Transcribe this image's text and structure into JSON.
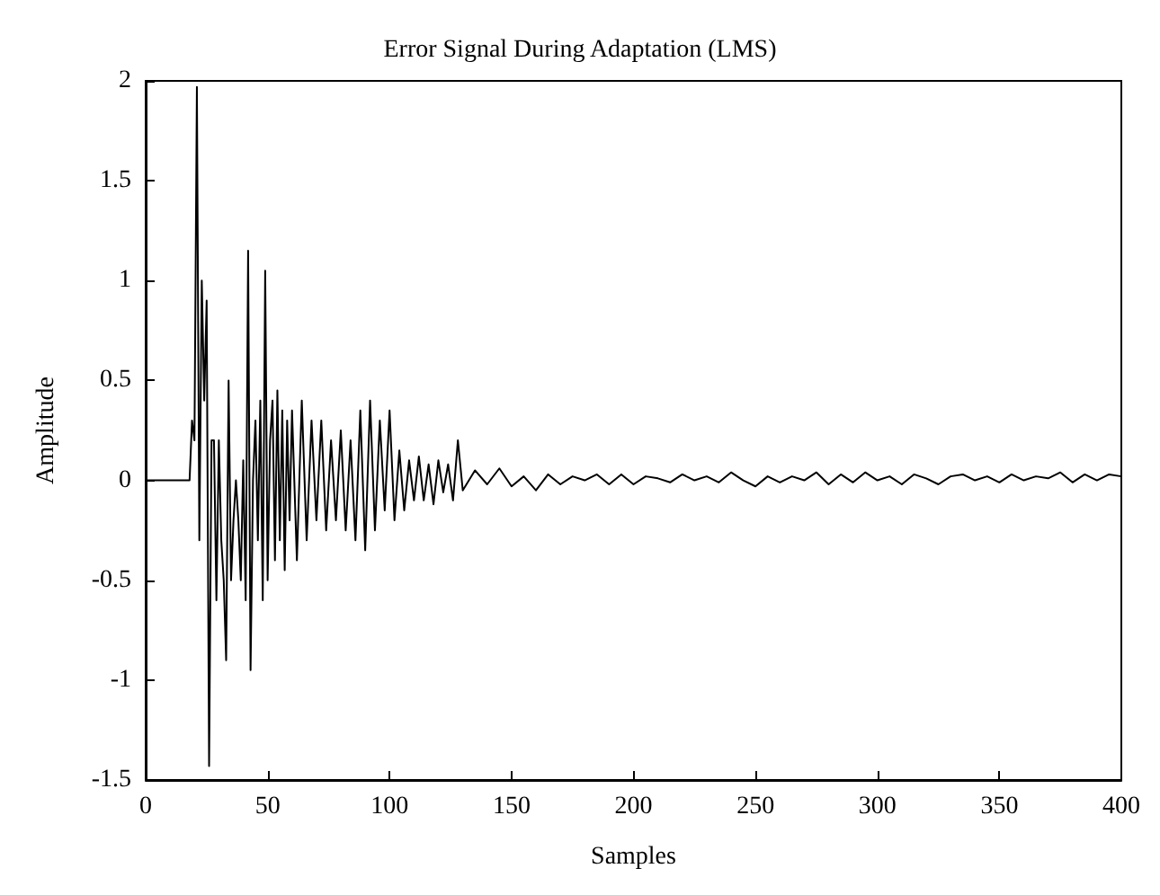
{
  "chart_data": {
    "type": "line",
    "title": "Error Signal During Adaptation (LMS)",
    "xlabel": "Samples",
    "ylabel": "Amplitude",
    "xlim": [
      0,
      400
    ],
    "xticks": [
      0,
      50,
      100,
      150,
      200,
      250,
      300,
      350,
      400
    ],
    "ylim": [
      -1.5,
      2
    ],
    "yticks": [
      -1.5,
      -1,
      -0.5,
      0,
      0.5,
      1,
      1.5,
      2
    ],
    "marker": "none",
    "line_style": "solid",
    "series": [
      {
        "color": "#000000",
        "x": [
          0,
          18,
          19,
          20,
          21,
          22,
          23,
          24,
          25,
          26,
          27,
          28,
          29,
          30,
          31,
          32,
          33,
          34,
          35,
          36,
          37,
          38,
          39,
          40,
          41,
          42,
          43,
          44,
          45,
          46,
          47,
          48,
          49,
          50,
          51,
          52,
          53,
          54,
          55,
          56,
          57,
          58,
          59,
          60,
          62,
          64,
          66,
          68,
          70,
          72,
          74,
          76,
          78,
          80,
          82,
          84,
          86,
          88,
          90,
          92,
          94,
          96,
          98,
          100,
          102,
          104,
          106,
          108,
          110,
          112,
          114,
          116,
          118,
          120,
          122,
          124,
          126,
          128,
          130,
          135,
          140,
          145,
          150,
          155,
          160,
          165,
          170,
          175,
          180,
          185,
          190,
          195,
          200,
          205,
          210,
          215,
          220,
          225,
          230,
          235,
          240,
          245,
          250,
          255,
          260,
          265,
          270,
          275,
          280,
          285,
          290,
          295,
          300,
          305,
          310,
          315,
          320,
          325,
          330,
          335,
          340,
          345,
          350,
          355,
          360,
          365,
          370,
          375,
          380,
          385,
          390,
          395,
          400
        ],
        "values": [
          0,
          0,
          0.3,
          0.2,
          1.97,
          -0.3,
          1.0,
          0.4,
          0.9,
          -1.43,
          0.2,
          0.2,
          -0.6,
          0.2,
          -0.3,
          -0.5,
          -0.9,
          0.5,
          -0.5,
          -0.2,
          0,
          -0.2,
          -0.5,
          0.1,
          -0.6,
          1.15,
          -0.95,
          0,
          0.3,
          -0.3,
          0.4,
          -0.6,
          1.05,
          -0.5,
          0.2,
          0.4,
          -0.4,
          0.45,
          -0.3,
          0.35,
          -0.45,
          0.3,
          -0.2,
          0.35,
          -0.4,
          0.4,
          -0.3,
          0.3,
          -0.2,
          0.3,
          -0.25,
          0.2,
          -0.2,
          0.25,
          -0.25,
          0.2,
          -0.3,
          0.35,
          -0.35,
          0.4,
          -0.25,
          0.3,
          -0.15,
          0.35,
          -0.2,
          0.15,
          -0.15,
          0.1,
          -0.1,
          0.12,
          -0.1,
          0.08,
          -0.12,
          0.1,
          -0.06,
          0.08,
          -0.1,
          0.2,
          -0.05,
          0.05,
          -0.02,
          0.06,
          -0.03,
          0.02,
          -0.05,
          0.03,
          -0.02,
          0.02,
          0,
          0.03,
          -0.02,
          0.03,
          -0.02,
          0.02,
          0.01,
          -0.01,
          0.03,
          0,
          0.02,
          -0.01,
          0.04,
          0,
          -0.03,
          0.02,
          -0.01,
          0.02,
          0,
          0.04,
          -0.02,
          0.03,
          -0.01,
          0.04,
          0,
          0.02,
          -0.02,
          0.03,
          0.01,
          -0.02,
          0.02,
          0.03,
          0,
          0.02,
          -0.01,
          0.03,
          0,
          0.02,
          0.01,
          0.04,
          -0.01,
          0.03,
          0,
          0.03,
          0.02
        ]
      }
    ]
  }
}
